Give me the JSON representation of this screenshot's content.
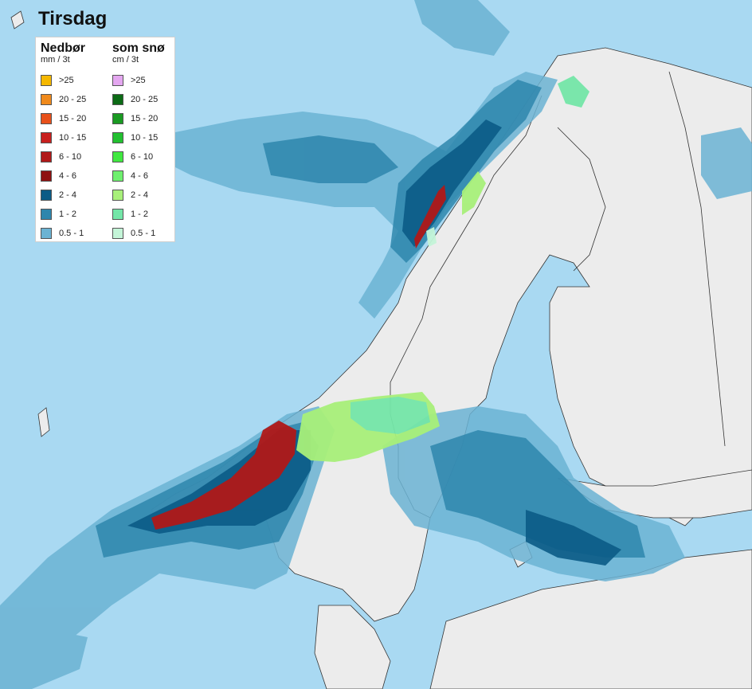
{
  "title": "Tirsdag",
  "legend": {
    "rain": {
      "heading": "Nedbør",
      "unit": "mm / 3t",
      "items": [
        {
          "label": ">25",
          "color": "#f5b800"
        },
        {
          "label": "20 - 25",
          "color": "#f08a1c"
        },
        {
          "label": "15 - 20",
          "color": "#e8501a"
        },
        {
          "label": "10 - 15",
          "color": "#c8201e"
        },
        {
          "label": "6 - 10",
          "color": "#b01818"
        },
        {
          "label": "4 - 6",
          "color": "#8e1010"
        },
        {
          "label": "2 - 4",
          "color": "#0b5b86"
        },
        {
          "label": "1 - 2",
          "color": "#2e86ad"
        },
        {
          "label": "0.5 - 1",
          "color": "#6bb3d3"
        }
      ]
    },
    "snow": {
      "heading": "som snø",
      "unit": "cm / 3t",
      "items": [
        {
          "label": ">25",
          "color": "#e4a7f0"
        },
        {
          "label": "20 - 25",
          "color": "#0c6b16"
        },
        {
          "label": "15 - 20",
          "color": "#1a9a22"
        },
        {
          "label": "10 - 15",
          "color": "#22c030"
        },
        {
          "label": "6 - 10",
          "color": "#40e840"
        },
        {
          "label": "4 - 6",
          "color": "#6ef06e"
        },
        {
          "label": "2 - 4",
          "color": "#a8f07a"
        },
        {
          "label": "1 - 2",
          "color": "#74e6a8"
        },
        {
          "label": "0.5 - 1",
          "color": "#c4f5d8"
        }
      ]
    }
  },
  "colors": {
    "sea": "#a9d9f2",
    "land": "#ececec",
    "border": "#333333",
    "precip_light": "#6bb3d3",
    "precip_mid": "#2e86ad",
    "precip_heavy": "#0b5b86",
    "precip_red": "#b01818",
    "snow_light": "#a8f07a",
    "snow_mid": "#74e6a8"
  }
}
